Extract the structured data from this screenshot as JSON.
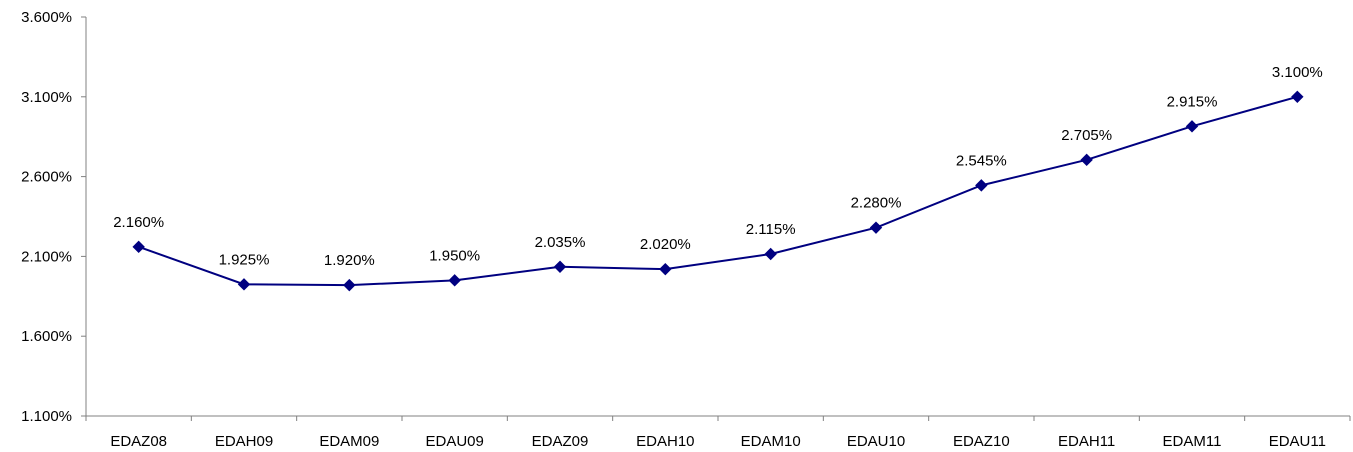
{
  "chart_data": {
    "type": "line",
    "title": "",
    "xlabel": "",
    "ylabel": "",
    "categories": [
      "EDAZ08",
      "EDAH09",
      "EDAM09",
      "EDAU09",
      "EDAZ09",
      "EDAH10",
      "EDAM10",
      "EDAU10",
      "EDAZ10",
      "EDAH11",
      "EDAM11",
      "EDAU11"
    ],
    "series": [
      {
        "values": [
          2.16,
          1.925,
          1.92,
          1.95,
          2.035,
          2.02,
          2.115,
          2.28,
          2.545,
          2.705,
          2.915,
          3.1
        ],
        "data_labels": [
          "2.160%",
          "1.925%",
          "1.920%",
          "1.950%",
          "2.035%",
          "2.020%",
          "2.115%",
          "2.280%",
          "2.545%",
          "2.705%",
          "2.915%",
          "3.100%"
        ],
        "color": "#000080",
        "marker": "diamond"
      }
    ],
    "ylim": [
      1.1,
      3.6
    ],
    "yticks": [
      1.1,
      1.6,
      2.1,
      2.6,
      3.1,
      3.6
    ],
    "ytick_labels": [
      "1.100%",
      "1.600%",
      "2.100%",
      "2.600%",
      "3.100%",
      "3.600%"
    ],
    "grid": false,
    "legend": "none"
  }
}
